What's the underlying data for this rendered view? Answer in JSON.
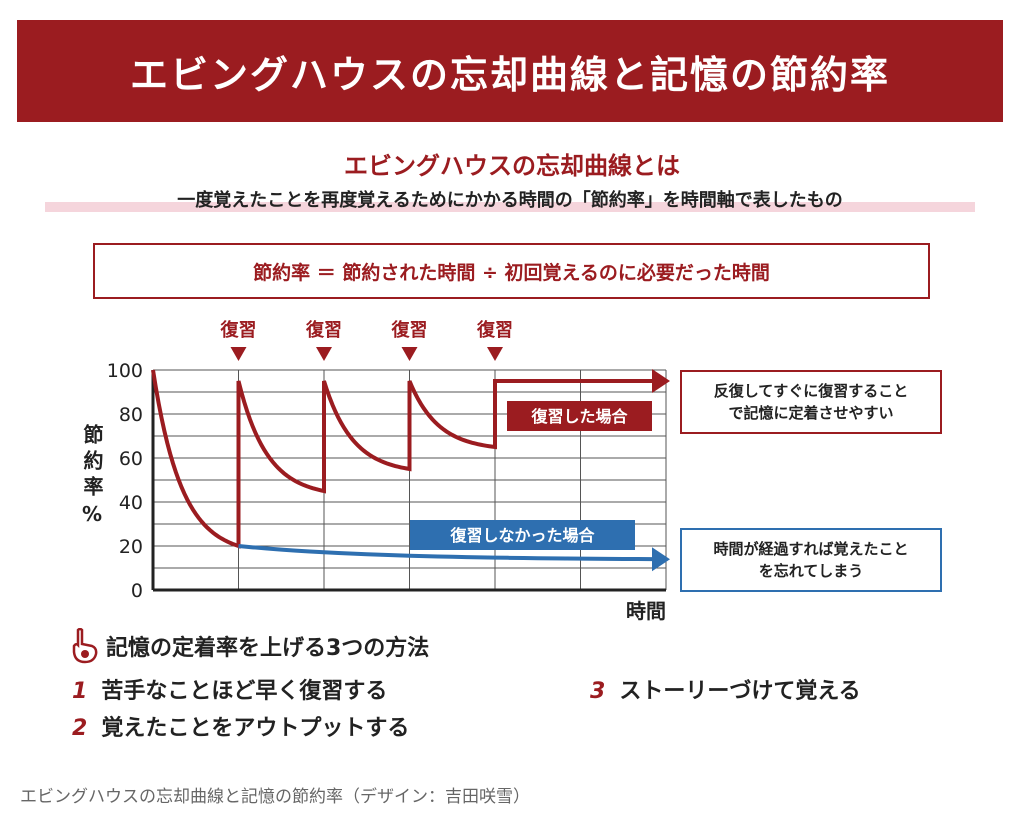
{
  "title": "エビングハウスの忘却曲線と記憶の節約率",
  "subtitle": "エビングハウスの忘却曲線とは",
  "description": "一度覚えたことを再度覚えるためにかかる時間の「節約率」を時間軸で表したもの",
  "formula": "節約率 ＝ 節約された時間 ÷ 初回覚えるのに必要だった時間",
  "notes": {
    "red": [
      "反復してすぐに復習すること",
      "で記憶に定着させやすい"
    ],
    "blue": [
      "時間が経過すれば覚えたこと",
      "を忘れてしまう"
    ]
  },
  "tips": {
    "title": "記憶の定着率を上げる3つの方法",
    "items": [
      {
        "n": "1",
        "text": "苦手なことほど早く復習する"
      },
      {
        "n": "2",
        "text": "覚えたことをアウトプットする"
      },
      {
        "n": "3",
        "text": "ストーリーづけて覚える"
      }
    ]
  },
  "caption": "エビングハウスの忘却曲線と記憶の節約率（デザイン：吉田咲雪）",
  "colors": {
    "red": "#9b1c20",
    "blue": "#2e6fb0"
  },
  "chart_data": {
    "type": "line",
    "ylabel": "節約率%",
    "xlabel": "時間",
    "ylim": [
      0,
      100
    ],
    "xlim": [
      0,
      6
    ],
    "yticks": [
      "0",
      "20",
      "40",
      "60",
      "80",
      "100"
    ],
    "review_label": "復習",
    "review_x": [
      1,
      2,
      3,
      4
    ],
    "series": [
      {
        "name": "復習した場合",
        "color": "#9b1c20",
        "segments": [
          [
            [
              0,
              100
            ],
            [
              1,
              20
            ]
          ],
          [
            [
              1,
              95
            ],
            [
              2,
              45
            ]
          ],
          [
            [
              2,
              95
            ],
            [
              3,
              55
            ]
          ],
          [
            [
              3,
              95
            ],
            [
              4,
              65
            ]
          ],
          [
            [
              4,
              95
            ],
            [
              6,
              95
            ]
          ]
        ]
      },
      {
        "name": "復習しなかった場合",
        "color": "#2e6fb0",
        "segments": [
          [
            [
              1,
              20
            ],
            [
              6,
              14
            ]
          ]
        ]
      }
    ]
  }
}
